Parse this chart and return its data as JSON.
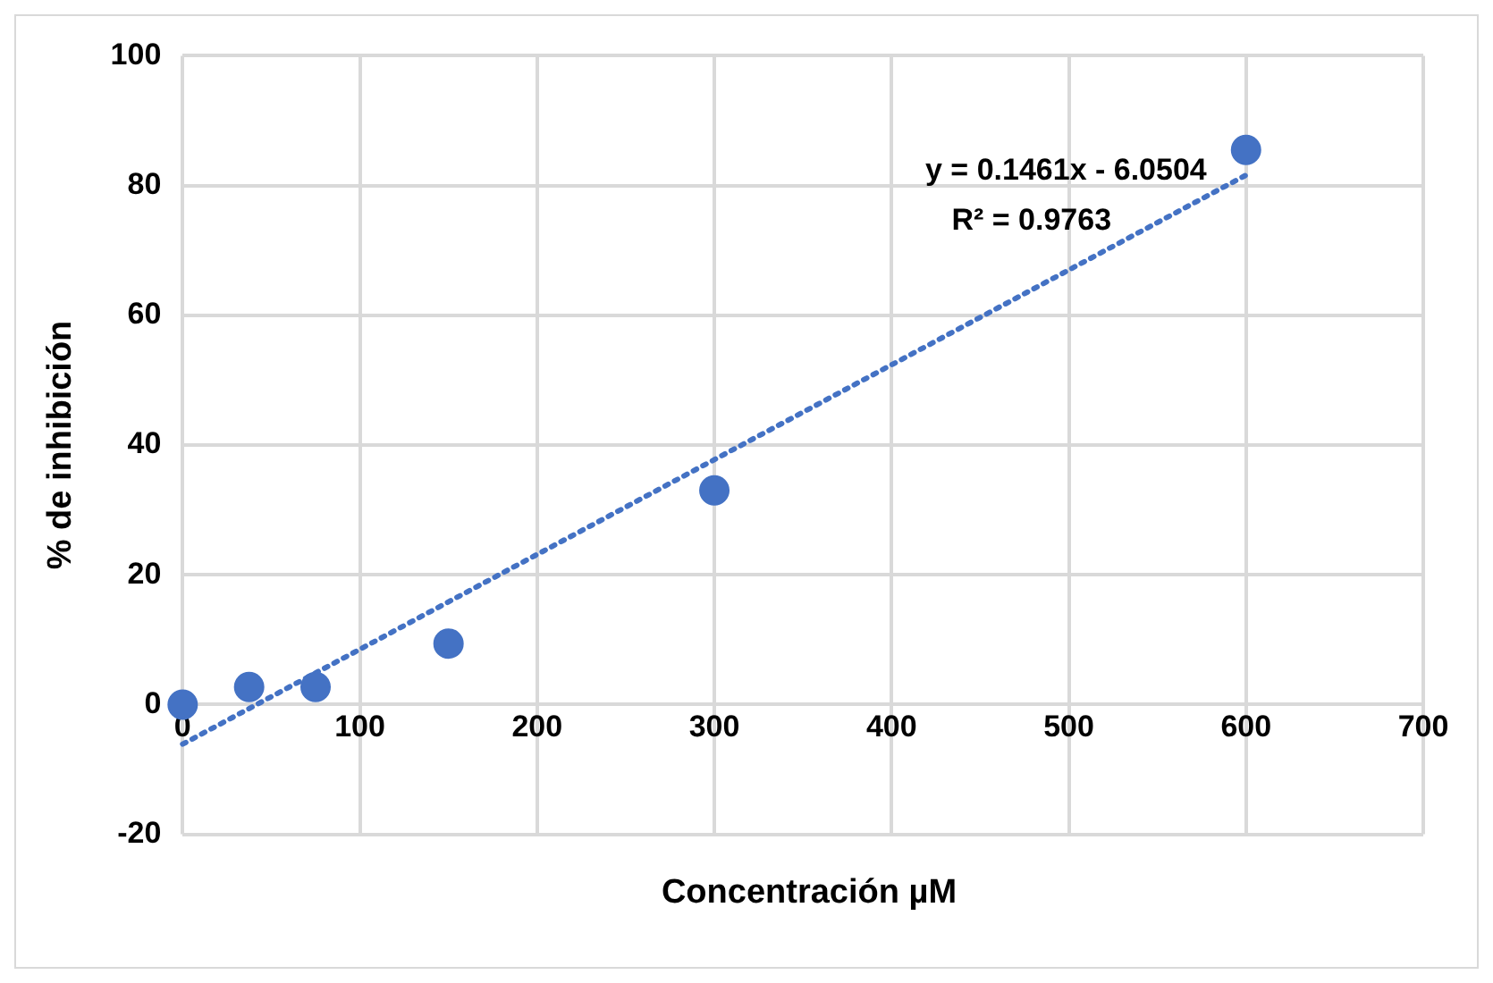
{
  "chart_data": {
    "type": "scatter",
    "xlabel": "Concentración µM",
    "ylabel": "% de inhibición",
    "xlim": [
      0,
      700
    ],
    "xticks": [
      0,
      100,
      200,
      300,
      400,
      500,
      600,
      700
    ],
    "ylim": [
      -20,
      100
    ],
    "yticks": [
      -20,
      0,
      20,
      40,
      60,
      80,
      100
    ],
    "grid": true,
    "legend": false,
    "marker": "circle",
    "series": [
      {
        "color": "#4472c4",
        "x": [
          0,
          37.5,
          75,
          150,
          300,
          600
        ],
        "values": [
          0,
          2.7,
          2.7,
          9.4,
          33,
          85.5
        ]
      },
      {
        "type": "line",
        "color": "#4472c4",
        "line_style": "dotted",
        "marker": "none",
        "x": [
          0,
          600
        ],
        "values": [
          -6.1,
          81.6
        ]
      }
    ],
    "annotations": [
      "y = 0.1461x - 6.0504",
      "R² = 0.9763"
    ]
  }
}
